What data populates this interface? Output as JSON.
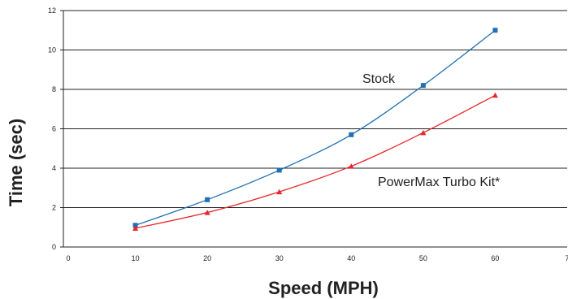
{
  "chart_data": {
    "type": "line",
    "xlabel": "Speed (MPH)",
    "ylabel": "Time (sec)",
    "xlim": [
      0,
      70
    ],
    "ylim": [
      0,
      12
    ],
    "x_ticks": [
      "0",
      "10",
      "20",
      "30",
      "40",
      "50",
      "60",
      "7"
    ],
    "y_ticks": [
      "0",
      "2",
      "4",
      "6",
      "8",
      "10",
      "12"
    ],
    "grid": "horizontal",
    "legend": "none",
    "series": [
      {
        "name": "Stock",
        "color": "#1f6fb2",
        "marker": "square",
        "x": [
          10,
          20,
          30,
          40,
          50,
          60
        ],
        "y": [
          1.1,
          2.4,
          3.9,
          5.7,
          8.2,
          11.0
        ]
      },
      {
        "name": "PowerMax Turbo Kit*",
        "color": "#e8262b",
        "marker": "triangle",
        "x": [
          10,
          20,
          30,
          40,
          50,
          60
        ],
        "y": [
          0.95,
          1.75,
          2.8,
          4.1,
          5.8,
          7.7
        ]
      }
    ]
  }
}
